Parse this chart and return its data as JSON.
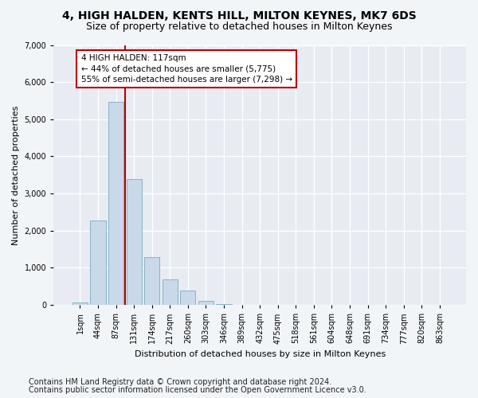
{
  "title1": "4, HIGH HALDEN, KENTS HILL, MILTON KEYNES, MK7 6DS",
  "title2": "Size of property relative to detached houses in Milton Keynes",
  "xlabel": "Distribution of detached houses by size in Milton Keynes",
  "ylabel": "Number of detached properties",
  "footnote1": "Contains HM Land Registry data © Crown copyright and database right 2024.",
  "footnote2": "Contains public sector information licensed under the Open Government Licence v3.0.",
  "bar_labels": [
    "1sqm",
    "44sqm",
    "87sqm",
    "131sqm",
    "174sqm",
    "217sqm",
    "260sqm",
    "303sqm",
    "346sqm",
    "389sqm",
    "432sqm",
    "475sqm",
    "518sqm",
    "561sqm",
    "604sqm",
    "648sqm",
    "691sqm",
    "734sqm",
    "777sqm",
    "820sqm",
    "863sqm"
  ],
  "bar_values": [
    60,
    2280,
    5470,
    3380,
    1290,
    690,
    390,
    100,
    30,
    0,
    0,
    0,
    0,
    0,
    0,
    0,
    0,
    0,
    0,
    0,
    0
  ],
  "bar_color": "#c9d9ea",
  "bar_edge_color": "#7aaabf",
  "vline_x": 2.5,
  "vline_color": "#bb0000",
  "annotation_text": "4 HIGH HALDEN: 117sqm\n← 44% of detached houses are smaller (5,775)\n55% of semi-detached houses are larger (7,298) →",
  "ylim": [
    0,
    7000
  ],
  "yticks": [
    0,
    1000,
    2000,
    3000,
    4000,
    5000,
    6000,
    7000
  ],
  "bg_color": "#f2f5f8",
  "plot_bg_color": "#e8ecf2",
  "grid_color": "#ffffff",
  "title1_fontsize": 10,
  "title2_fontsize": 9,
  "axis_label_fontsize": 8,
  "tick_fontsize": 7,
  "footnote_fontsize": 7
}
